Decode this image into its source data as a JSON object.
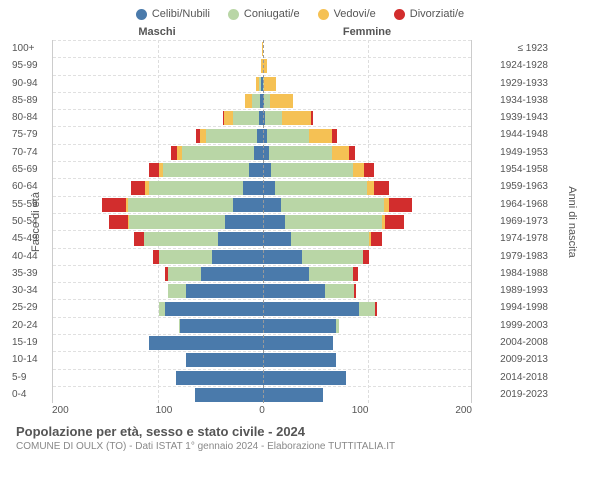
{
  "legend": [
    {
      "label": "Celibi/Nubili",
      "color": "#4a7aab"
    },
    {
      "label": "Coniugati/e",
      "color": "#b9d6a6"
    },
    {
      "label": "Vedovi/e",
      "color": "#f5c154"
    },
    {
      "label": "Divorziati/e",
      "color": "#d22d2d"
    }
  ],
  "headers": {
    "maschi": "Maschi",
    "femmine": "Femmine"
  },
  "y_left_label": "Fasce di età",
  "y_right_label": "Anni di nascita",
  "x_ticks": [
    "200",
    "100",
    "0",
    "100",
    "200"
  ],
  "x_max": 200,
  "colors": {
    "celibi": "#4a7aab",
    "coniugati": "#b9d6a6",
    "vedovi": "#f5c154",
    "divorziati": "#d22d2d",
    "grid": "#e0e0e0",
    "axis": "#ccc",
    "text": "#555"
  },
  "rows": [
    {
      "age": "100+",
      "year": "≤ 1923",
      "m": {
        "c": 0,
        "co": 0,
        "v": 0,
        "d": 0
      },
      "f": {
        "c": 0,
        "co": 0,
        "v": 1,
        "d": 0
      }
    },
    {
      "age": "95-99",
      "year": "1924-1928",
      "m": {
        "c": 0,
        "co": 0,
        "v": 1,
        "d": 0
      },
      "f": {
        "c": 0,
        "co": 0,
        "v": 5,
        "d": 0
      }
    },
    {
      "age": "90-94",
      "year": "1929-1933",
      "m": {
        "c": 1,
        "co": 2,
        "v": 3,
        "d": 0
      },
      "f": {
        "c": 1,
        "co": 1,
        "v": 11,
        "d": 0
      }
    },
    {
      "age": "85-89",
      "year": "1934-1938",
      "m": {
        "c": 2,
        "co": 8,
        "v": 6,
        "d": 0
      },
      "f": {
        "c": 2,
        "co": 6,
        "v": 22,
        "d": 0
      }
    },
    {
      "age": "80-84",
      "year": "1939-1943",
      "m": {
        "c": 3,
        "co": 25,
        "v": 8,
        "d": 1
      },
      "f": {
        "c": 3,
        "co": 16,
        "v": 28,
        "d": 2
      }
    },
    {
      "age": "75-79",
      "year": "1944-1948",
      "m": {
        "c": 5,
        "co": 48,
        "v": 6,
        "d": 4
      },
      "f": {
        "c": 5,
        "co": 40,
        "v": 22,
        "d": 4
      }
    },
    {
      "age": "70-74",
      "year": "1949-1953",
      "m": {
        "c": 8,
        "co": 68,
        "v": 5,
        "d": 6
      },
      "f": {
        "c": 7,
        "co": 60,
        "v": 16,
        "d": 6
      }
    },
    {
      "age": "65-69",
      "year": "1954-1958",
      "m": {
        "c": 12,
        "co": 82,
        "v": 4,
        "d": 10
      },
      "f": {
        "c": 9,
        "co": 78,
        "v": 10,
        "d": 10
      }
    },
    {
      "age": "60-64",
      "year": "1959-1963",
      "m": {
        "c": 18,
        "co": 90,
        "v": 3,
        "d": 14
      },
      "f": {
        "c": 12,
        "co": 88,
        "v": 7,
        "d": 14
      }
    },
    {
      "age": "55-59",
      "year": "1964-1968",
      "m": {
        "c": 28,
        "co": 100,
        "v": 2,
        "d": 22
      },
      "f": {
        "c": 18,
        "co": 98,
        "v": 5,
        "d": 22
      }
    },
    {
      "age": "50-54",
      "year": "1969-1973",
      "m": {
        "c": 35,
        "co": 92,
        "v": 1,
        "d": 18
      },
      "f": {
        "c": 22,
        "co": 92,
        "v": 3,
        "d": 18
      }
    },
    {
      "age": "45-49",
      "year": "1974-1978",
      "m": {
        "c": 42,
        "co": 70,
        "v": 0,
        "d": 10
      },
      "f": {
        "c": 28,
        "co": 74,
        "v": 2,
        "d": 10
      }
    },
    {
      "age": "40-44",
      "year": "1979-1983",
      "m": {
        "c": 48,
        "co": 50,
        "v": 0,
        "d": 6
      },
      "f": {
        "c": 38,
        "co": 58,
        "v": 0,
        "d": 6
      }
    },
    {
      "age": "35-39",
      "year": "1984-1988",
      "m": {
        "c": 58,
        "co": 32,
        "v": 0,
        "d": 2
      },
      "f": {
        "c": 45,
        "co": 42,
        "v": 0,
        "d": 4
      }
    },
    {
      "age": "30-34",
      "year": "1989-1993",
      "m": {
        "c": 72,
        "co": 18,
        "v": 0,
        "d": 0
      },
      "f": {
        "c": 60,
        "co": 28,
        "v": 0,
        "d": 2
      }
    },
    {
      "age": "25-29",
      "year": "1994-1998",
      "m": {
        "c": 92,
        "co": 6,
        "v": 0,
        "d": 0
      },
      "f": {
        "c": 92,
        "co": 16,
        "v": 0,
        "d": 2
      }
    },
    {
      "age": "20-24",
      "year": "1999-2003",
      "m": {
        "c": 78,
        "co": 1,
        "v": 0,
        "d": 0
      },
      "f": {
        "c": 70,
        "co": 3,
        "v": 0,
        "d": 0
      }
    },
    {
      "age": "15-19",
      "year": "2004-2008",
      "m": {
        "c": 108,
        "co": 0,
        "v": 0,
        "d": 0
      },
      "f": {
        "c": 68,
        "co": 0,
        "v": 0,
        "d": 0
      }
    },
    {
      "age": "10-14",
      "year": "2009-2013",
      "m": {
        "c": 72,
        "co": 0,
        "v": 0,
        "d": 0
      },
      "f": {
        "c": 70,
        "co": 0,
        "v": 0,
        "d": 0
      }
    },
    {
      "age": "5-9",
      "year": "2014-2018",
      "m": {
        "c": 82,
        "co": 0,
        "v": 0,
        "d": 0
      },
      "f": {
        "c": 80,
        "co": 0,
        "v": 0,
        "d": 0
      }
    },
    {
      "age": "0-4",
      "year": "2019-2023",
      "m": {
        "c": 64,
        "co": 0,
        "v": 0,
        "d": 0
      },
      "f": {
        "c": 58,
        "co": 0,
        "v": 0,
        "d": 0
      }
    }
  ],
  "footer": {
    "title": "Popolazione per età, sesso e stato civile - 2024",
    "subtitle": "COMUNE DI OULX (TO) - Dati ISTAT 1° gennaio 2024 - Elaborazione TUTTITALIA.IT"
  }
}
